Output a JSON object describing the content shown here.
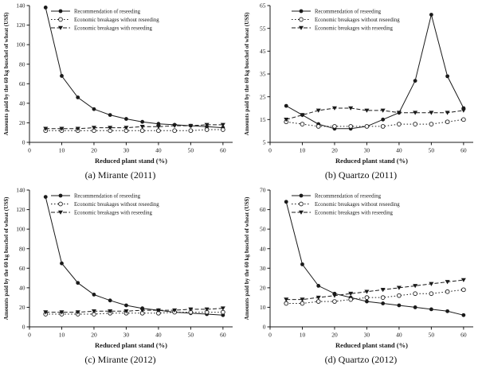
{
  "figure": {
    "title": "",
    "background": "#ffffff",
    "line_color": "#1a1a1a",
    "legend_entries": [
      "Recommendation of reseeding",
      "Economic breakages without reseeding",
      "Economic breakages with reseeding"
    ]
  },
  "chart_data": [
    {
      "type": "line",
      "caption": "(a) Mirante (2011)",
      "xlabel": "Reduced plant stand (%)",
      "ylabel": "Amounts paid by the 60 kg buschel of wheat (US$)",
      "xlim": [
        0,
        63
      ],
      "ylim": [
        0,
        140
      ],
      "xticks": [
        0,
        10,
        20,
        30,
        40,
        50,
        60
      ],
      "yticks": [
        0,
        20,
        40,
        60,
        80,
        100,
        120,
        140
      ],
      "x": [
        5,
        10,
        15,
        20,
        25,
        30,
        35,
        40,
        45,
        50,
        55,
        60
      ],
      "legend_position": "top-left",
      "grid": false,
      "series": [
        {
          "name": "Recommendation of reseeding",
          "marker": "filled-circle",
          "line": "solid",
          "values": [
            138,
            68,
            46,
            34,
            28,
            24,
            21,
            19,
            18,
            17,
            16,
            15
          ]
        },
        {
          "name": "Economic breakages without reseeding",
          "marker": "open-circle",
          "line": "dotted",
          "values": [
            12,
            12,
            12,
            12,
            12,
            12,
            12,
            12,
            12,
            12,
            13,
            13
          ]
        },
        {
          "name": "Economic breakages with reseeding",
          "marker": "filled-triangle",
          "line": "dashed",
          "values": [
            14,
            14,
            14,
            15,
            15,
            15,
            16,
            16,
            17,
            17,
            18,
            18
          ]
        }
      ]
    },
    {
      "type": "line",
      "caption": "(b) Quartzo (2011)",
      "xlabel": "Reduced plant stand (%)",
      "ylabel": "Amounts paid by the 60 kg buschel of wheat (US$)",
      "xlim": [
        0,
        63
      ],
      "ylim": [
        5,
        65
      ],
      "xticks": [
        0,
        10,
        20,
        30,
        40,
        50,
        60
      ],
      "yticks": [
        5,
        15,
        25,
        35,
        45,
        55,
        65
      ],
      "x": [
        5,
        10,
        15,
        20,
        25,
        30,
        35,
        40,
        45,
        50,
        55,
        60
      ],
      "legend_position": "top-left",
      "grid": false,
      "series": [
        {
          "name": "Recommendation of reseeding",
          "marker": "filled-circle",
          "line": "solid",
          "values": [
            21,
            17,
            13,
            11,
            11,
            12,
            15,
            18,
            32,
            61,
            34,
            20
          ]
        },
        {
          "name": "Economic breakages without reseeding",
          "marker": "open-circle",
          "line": "dotted",
          "values": [
            14,
            13,
            12,
            12,
            12,
            12,
            12,
            13,
            13,
            13,
            14,
            15
          ]
        },
        {
          "name": "Economic breakages with reseeding",
          "marker": "filled-triangle",
          "line": "dashed",
          "values": [
            15,
            17,
            19,
            20,
            20,
            19,
            19,
            18,
            18,
            18,
            18,
            19
          ]
        }
      ]
    },
    {
      "type": "line",
      "caption": "(c) Mirante (2012)",
      "xlabel": "Reduced plant stand (%)",
      "ylabel": "Amounts paid by the 60 kg buschel of wheat (US$)",
      "xlim": [
        0,
        63
      ],
      "ylim": [
        0,
        140
      ],
      "xticks": [
        0,
        10,
        20,
        30,
        40,
        50,
        60
      ],
      "yticks": [
        0,
        20,
        40,
        60,
        80,
        100,
        120,
        140
      ],
      "x": [
        5,
        10,
        15,
        20,
        25,
        30,
        35,
        40,
        45,
        50,
        55,
        60
      ],
      "legend_position": "top-left",
      "grid": false,
      "series": [
        {
          "name": "Recommendation of reseeding",
          "marker": "filled-circle",
          "line": "solid",
          "values": [
            133,
            65,
            45,
            33,
            27,
            22,
            19,
            17,
            15,
            14,
            13,
            12
          ]
        },
        {
          "name": "Economic breakages without reseeding",
          "marker": "open-circle",
          "line": "dotted",
          "values": [
            13,
            13,
            13,
            13,
            14,
            14,
            14,
            14,
            15,
            15,
            15,
            15
          ]
        },
        {
          "name": "Economic breakages with reseeding",
          "marker": "filled-triangle",
          "line": "dashed",
          "values": [
            15,
            15,
            15,
            16,
            16,
            16,
            17,
            17,
            17,
            18,
            18,
            19
          ]
        }
      ]
    },
    {
      "type": "line",
      "caption": "(d) Quartzo (2012)",
      "xlabel": "Reduced plant stand (%)",
      "ylabel": "Amounts paid by the 60 kg buschel of wheat (US$)",
      "xlim": [
        0,
        63
      ],
      "ylim": [
        0,
        70
      ],
      "xticks": [
        0,
        10,
        20,
        30,
        40,
        50,
        60
      ],
      "yticks": [
        0,
        10,
        20,
        30,
        40,
        50,
        60,
        70
      ],
      "x": [
        5,
        10,
        15,
        20,
        25,
        30,
        35,
        40,
        45,
        50,
        55,
        60
      ],
      "legend_position": "top-left",
      "grid": false,
      "series": [
        {
          "name": "Recommendation of reseeding",
          "marker": "filled-circle",
          "line": "solid",
          "values": [
            64,
            32,
            21,
            17,
            15,
            13,
            12,
            11,
            10,
            9,
            8,
            6
          ]
        },
        {
          "name": "Economic breakages without reseeding",
          "marker": "open-circle",
          "line": "dotted",
          "values": [
            12,
            12,
            13,
            13,
            14,
            15,
            15,
            16,
            17,
            17,
            18,
            19
          ]
        },
        {
          "name": "Economic breakages with reseeding",
          "marker": "filled-triangle",
          "line": "dashed",
          "values": [
            14,
            14,
            15,
            16,
            17,
            18,
            19,
            20,
            21,
            22,
            23,
            24
          ]
        }
      ]
    }
  ]
}
